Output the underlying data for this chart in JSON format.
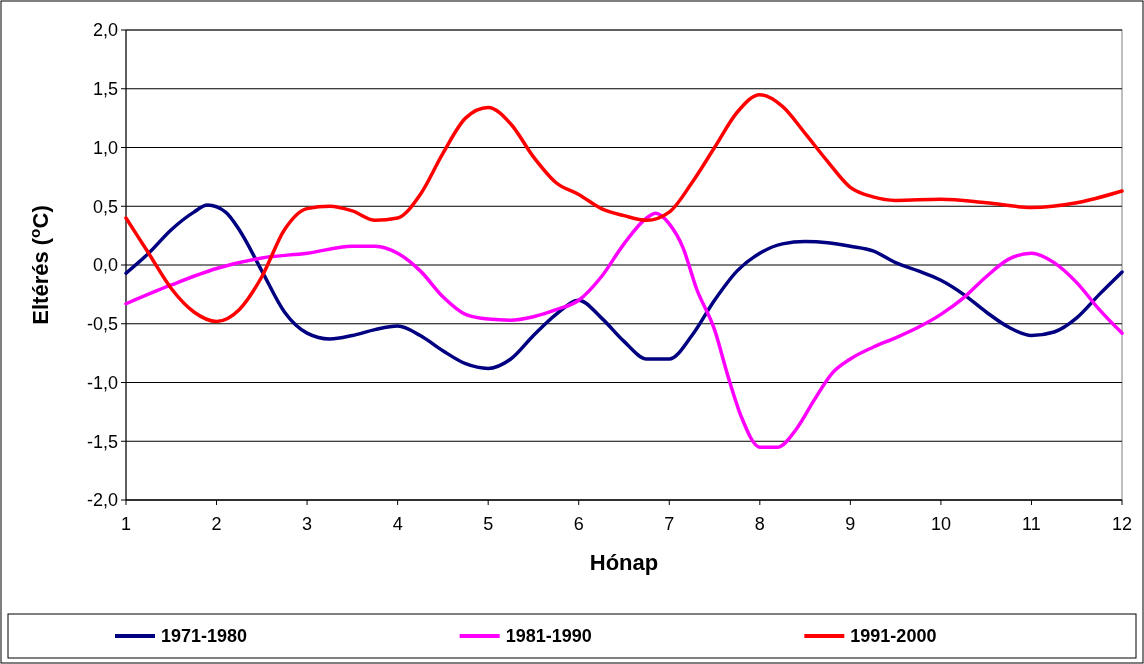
{
  "chart_data": {
    "type": "line",
    "xlabel": "Hónap",
    "ylabel": "Eltérés ($^{o}$C)",
    "xlim": [
      1,
      12
    ],
    "xticks": [
      1,
      2,
      3,
      4,
      5,
      6,
      7,
      8,
      9,
      10,
      11,
      12
    ],
    "ylim": [
      -2,
      2
    ],
    "yticks": [
      {
        "value": -2,
        "label": "-2,0"
      },
      {
        "value": -1.5,
        "label": "-1,5"
      },
      {
        "value": -1,
        "label": "-1,0"
      },
      {
        "value": -0.5,
        "label": "-0,5"
      },
      {
        "value": 0,
        "label": "0,0"
      },
      {
        "value": 0.5,
        "label": "0,5"
      },
      {
        "value": 1,
        "label": "1,0"
      },
      {
        "value": 1.5,
        "label": "1,5"
      },
      {
        "value": 2,
        "label": "2,0"
      }
    ],
    "grid": "y",
    "legend": "bottom",
    "line_style": "solid",
    "marker": "none",
    "series": [
      {
        "name": "1971-1980",
        "color": "#000080",
        "x": [
          1,
          1.25,
          1.5,
          1.75,
          1.9,
          2.1,
          2.25,
          2.5,
          2.75,
          3,
          3.25,
          3.5,
          3.75,
          4,
          4.25,
          4.5,
          4.75,
          5,
          5.25,
          5.5,
          5.75,
          6,
          6.25,
          6.5,
          6.75,
          7,
          7.25,
          7.5,
          7.75,
          8,
          8.25,
          8.5,
          8.75,
          9,
          9.25,
          9.5,
          9.75,
          10,
          10.25,
          10.5,
          10.75,
          11,
          11.25,
          11.5,
          11.75,
          12
        ],
        "values": [
          -0.07,
          0.1,
          0.3,
          0.45,
          0.51,
          0.45,
          0.3,
          -0.05,
          -0.4,
          -0.58,
          -0.63,
          -0.6,
          -0.55,
          -0.52,
          -0.6,
          -0.73,
          -0.84,
          -0.88,
          -0.8,
          -0.6,
          -0.42,
          -0.3,
          -0.45,
          -0.65,
          -0.8,
          -0.8,
          -0.6,
          -0.3,
          -0.05,
          0.1,
          0.18,
          0.2,
          0.19,
          0.16,
          0.12,
          0.02,
          -0.05,
          -0.13,
          -0.25,
          -0.4,
          -0.53,
          -0.6,
          -0.57,
          -0.45,
          -0.25,
          -0.06
        ]
      },
      {
        "name": "1981-1990",
        "color": "#ff00ff",
        "x": [
          1,
          1.5,
          2,
          2.5,
          3,
          3.5,
          3.75,
          4,
          4.25,
          4.5,
          4.75,
          5,
          5.25,
          5.5,
          5.75,
          6,
          6.25,
          6.5,
          6.75,
          6.85,
          7,
          7.15,
          7.3,
          7.5,
          7.65,
          7.8,
          8,
          8.2,
          8.4,
          8.6,
          8.8,
          9,
          9.25,
          9.5,
          9.75,
          10,
          10.25,
          10.5,
          10.75,
          11,
          11.25,
          11.5,
          11.75,
          12
        ],
        "values": [
          -0.33,
          -0.17,
          -0.03,
          0.06,
          0.1,
          0.16,
          0.16,
          0.1,
          -0.05,
          -0.27,
          -0.42,
          -0.46,
          -0.47,
          -0.44,
          -0.38,
          -0.3,
          -0.1,
          0.18,
          0.4,
          0.44,
          0.35,
          0.15,
          -0.2,
          -0.55,
          -0.95,
          -1.3,
          -1.55,
          -1.55,
          -1.4,
          -1.15,
          -0.92,
          -0.8,
          -0.7,
          -0.62,
          -0.53,
          -0.42,
          -0.28,
          -0.1,
          0.05,
          0.1,
          0.02,
          -0.15,
          -0.38,
          -0.58
        ]
      },
      {
        "name": "1991-2000",
        "color": "#ff0000",
        "x": [
          1,
          1.25,
          1.5,
          1.75,
          2,
          2.25,
          2.5,
          2.75,
          3,
          3.25,
          3.5,
          3.75,
          4,
          4.25,
          4.5,
          4.75,
          5,
          5.25,
          5.5,
          5.75,
          6,
          6.25,
          6.5,
          6.75,
          7,
          7.25,
          7.5,
          7.75,
          8,
          8.25,
          8.5,
          8.75,
          9,
          9.25,
          9.5,
          10,
          10.5,
          11,
          11.5,
          12
        ],
        "values": [
          0.4,
          0.1,
          -0.2,
          -0.4,
          -0.48,
          -0.38,
          -0.1,
          0.3,
          0.48,
          0.5,
          0.46,
          0.38,
          0.4,
          0.6,
          0.95,
          1.25,
          1.34,
          1.2,
          0.92,
          0.7,
          0.6,
          0.48,
          0.42,
          0.38,
          0.45,
          0.7,
          1,
          1.3,
          1.45,
          1.35,
          1.12,
          0.88,
          0.66,
          0.58,
          0.55,
          0.56,
          0.53,
          0.49,
          0.53,
          0.63
        ]
      }
    ]
  }
}
